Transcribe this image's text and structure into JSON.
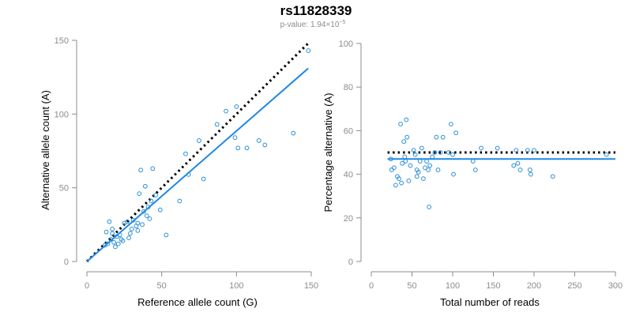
{
  "figure": {
    "title": "rs11828339",
    "subtitle": "p-value: 1.94×10",
    "subtitle_exp": "−5"
  },
  "colors": {
    "points": "#2a8fd8",
    "fit_line": "#1e88e5",
    "ref_line": "#000000",
    "axis": "#8c8c8c"
  },
  "chart_data": [
    {
      "type": "scatter",
      "xlabel": "Reference allele count (G)",
      "ylabel": "Alternative allele count (A)",
      "xlim": [
        0,
        150
      ],
      "ylim": [
        0,
        150
      ],
      "xticks": [
        0,
        50,
        100,
        150
      ],
      "yticks": [
        0,
        50,
        100,
        150
      ],
      "fit_line": {
        "style": "solid",
        "from": [
          0,
          0
        ],
        "to": [
          148,
          131
        ]
      },
      "ref_line": {
        "style": "dotted",
        "from": [
          0,
          0
        ],
        "to": [
          148,
          148
        ]
      },
      "points": [
        [
          12,
          11
        ],
        [
          13,
          20
        ],
        [
          14,
          12
        ],
        [
          15,
          27
        ],
        [
          16,
          15
        ],
        [
          17,
          19
        ],
        [
          17,
          22
        ],
        [
          18,
          13
        ],
        [
          19,
          10
        ],
        [
          20,
          17
        ],
        [
          21,
          12
        ],
        [
          22,
          18
        ],
        [
          23,
          15
        ],
        [
          24,
          14
        ],
        [
          25,
          26
        ],
        [
          27,
          27
        ],
        [
          28,
          16
        ],
        [
          29,
          19
        ],
        [
          30,
          22
        ],
        [
          31,
          28
        ],
        [
          33,
          24
        ],
        [
          34,
          21
        ],
        [
          34,
          26
        ],
        [
          35,
          46
        ],
        [
          36,
          62
        ],
        [
          37,
          25
        ],
        [
          38,
          34
        ],
        [
          39,
          51
        ],
        [
          40,
          31
        ],
        [
          41,
          37
        ],
        [
          42,
          29
        ],
        [
          43,
          41
        ],
        [
          44,
          63
        ],
        [
          46,
          45
        ],
        [
          49,
          35
        ],
        [
          53,
          18
        ],
        [
          62,
          41
        ],
        [
          66,
          73
        ],
        [
          68,
          59
        ],
        [
          75,
          82
        ],
        [
          78,
          56
        ],
        [
          87,
          93
        ],
        [
          93,
          102
        ],
        [
          99,
          84
        ],
        [
          100,
          105
        ],
        [
          101,
          77
        ],
        [
          107,
          77
        ],
        [
          115,
          82
        ],
        [
          119,
          79
        ],
        [
          138,
          87
        ],
        [
          148,
          143
        ]
      ]
    },
    {
      "type": "scatter",
      "xlabel": "Total number of reads",
      "ylabel": "Percentage alternative (A)",
      "xlim": [
        0,
        300
      ],
      "ylim": [
        0,
        100
      ],
      "xticks": [
        0,
        50,
        100,
        150,
        200,
        250,
        300
      ],
      "yticks": [
        0,
        20,
        40,
        60,
        80,
        100
      ],
      "fit_line": {
        "style": "solid",
        "y": 47
      },
      "ref_line": {
        "style": "dotted",
        "y": 50
      },
      "points": [
        [
          24,
          47
        ],
        [
          25,
          42
        ],
        [
          28,
          43
        ],
        [
          30,
          35
        ],
        [
          32,
          39
        ],
        [
          34,
          38
        ],
        [
          36,
          63
        ],
        [
          37,
          36
        ],
        [
          38,
          45
        ],
        [
          40,
          55
        ],
        [
          41,
          48
        ],
        [
          42,
          46
        ],
        [
          43,
          65
        ],
        [
          44,
          57
        ],
        [
          46,
          37
        ],
        [
          48,
          44
        ],
        [
          52,
          51
        ],
        [
          54,
          49
        ],
        [
          56,
          39
        ],
        [
          56,
          42
        ],
        [
          58,
          41
        ],
        [
          60,
          46
        ],
        [
          62,
          52
        ],
        [
          64,
          38
        ],
        [
          66,
          43
        ],
        [
          68,
          46
        ],
        [
          70,
          42
        ],
        [
          71,
          25
        ],
        [
          72,
          44
        ],
        [
          75,
          48
        ],
        [
          78,
          50
        ],
        [
          80,
          57
        ],
        [
          82,
          42
        ],
        [
          85,
          50
        ],
        [
          88,
          57
        ],
        [
          95,
          50
        ],
        [
          98,
          63
        ],
        [
          100,
          49
        ],
        [
          101,
          40
        ],
        [
          104,
          59
        ],
        [
          125,
          46
        ],
        [
          128,
          42
        ],
        [
          135,
          52
        ],
        [
          155,
          52
        ],
        [
          175,
          44
        ],
        [
          178,
          51
        ],
        [
          180,
          45
        ],
        [
          183,
          42
        ],
        [
          192,
          51
        ],
        [
          195,
          42
        ],
        [
          196,
          40
        ],
        [
          200,
          51
        ],
        [
          223,
          39
        ],
        [
          289,
          49
        ]
      ]
    }
  ]
}
